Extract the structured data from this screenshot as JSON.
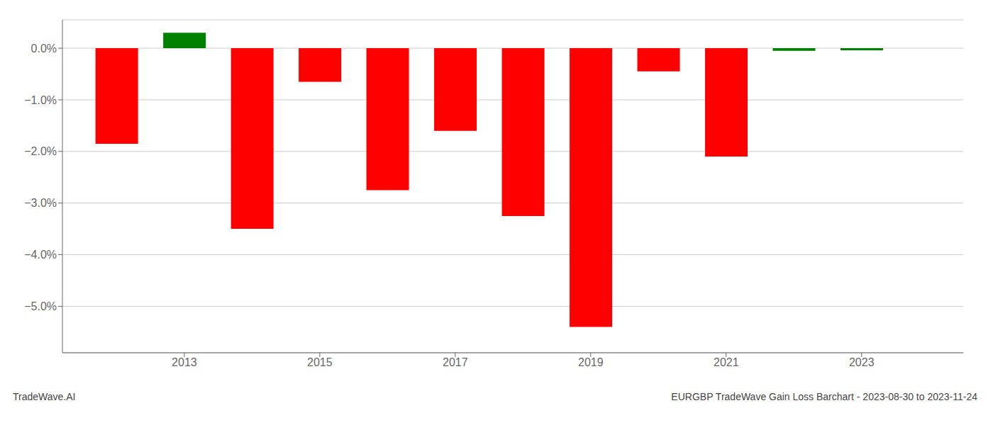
{
  "chart_data": {
    "type": "bar",
    "x": [
      2012,
      2013,
      2014,
      2015,
      2016,
      2017,
      2018,
      2019,
      2020,
      2021,
      2022,
      2023
    ],
    "values": [
      -1.85,
      0.3,
      -3.5,
      -0.65,
      -2.75,
      -1.6,
      -3.25,
      -5.4,
      -0.45,
      -2.1,
      -0.05,
      -0.04
    ],
    "colors": [
      "#ff0000",
      "#008000",
      "#ff0000",
      "#ff0000",
      "#ff0000",
      "#ff0000",
      "#ff0000",
      "#ff0000",
      "#ff0000",
      "#ff0000",
      "#008000",
      "#008000"
    ],
    "xlim": [
      2011.2,
      2024.5
    ],
    "xticks": [
      2013,
      2015,
      2017,
      2019,
      2021,
      2023
    ],
    "ylim": [
      -5.9,
      0.55
    ],
    "yticks": [
      {
        "value": 0.0,
        "label": "0.0%"
      },
      {
        "value": -1.0,
        "label": "−1.0%"
      },
      {
        "value": -2.0,
        "label": "−2.0%"
      },
      {
        "value": -3.0,
        "label": "−3.0%"
      },
      {
        "value": -4.0,
        "label": "−4.0%"
      },
      {
        "value": -5.0,
        "label": "−5.0%"
      }
    ],
    "grid": true,
    "annotations": [
      "TradeWave.AI",
      "EURGBP TradeWave Gain Loss Barchart - 2023-08-30 to 2023-11-24"
    ]
  }
}
